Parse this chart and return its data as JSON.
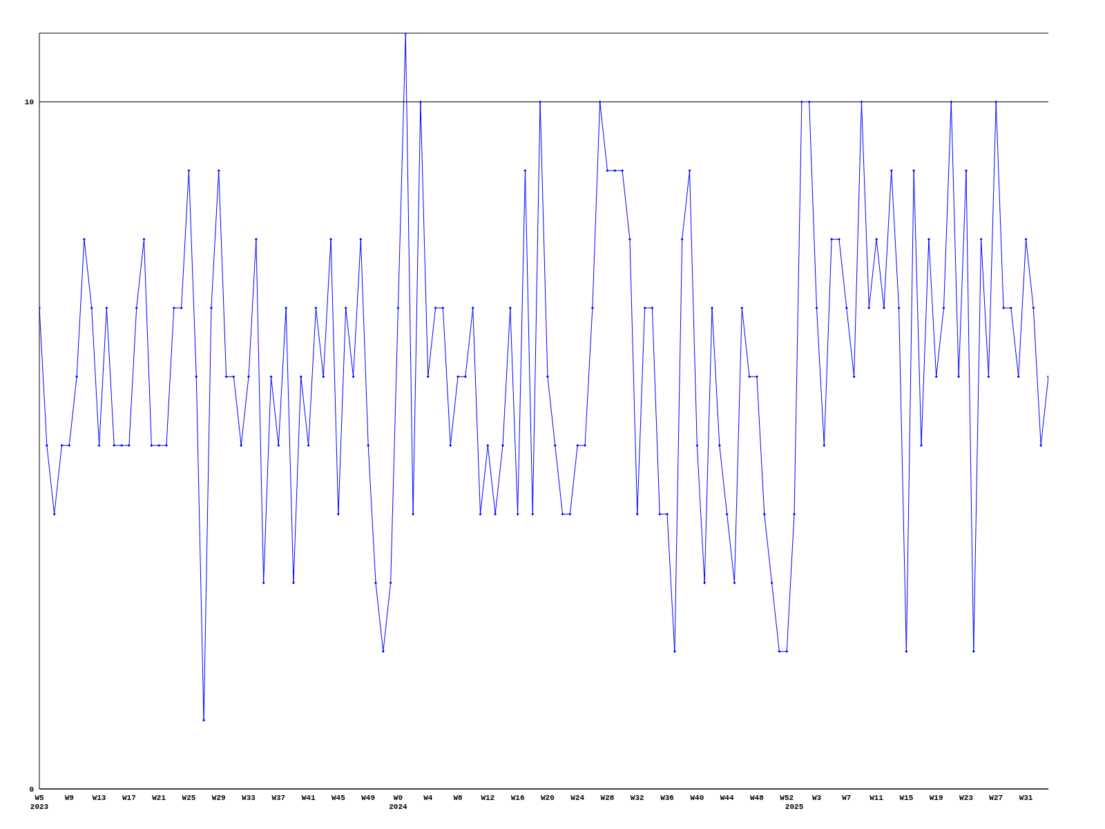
{
  "chart_data": {
    "type": "line",
    "categories": [
      "W5\n2023",
      null,
      null,
      null,
      "W9",
      null,
      null,
      null,
      "W13",
      null,
      null,
      null,
      "W17",
      null,
      null,
      null,
      "W21",
      null,
      null,
      null,
      "W25",
      null,
      null,
      null,
      "W29",
      null,
      null,
      null,
      "W33",
      null,
      null,
      null,
      "W37",
      null,
      null,
      null,
      "W41",
      null,
      null,
      null,
      "W45",
      null,
      null,
      null,
      "W49",
      null,
      null,
      null,
      "W0\n2024",
      null,
      null,
      null,
      "W4",
      null,
      null,
      null,
      "W8",
      null,
      null,
      null,
      "W12",
      null,
      null,
      null,
      "W16",
      null,
      null,
      null,
      "W20",
      null,
      null,
      null,
      "W24",
      null,
      null,
      null,
      "W28",
      null,
      null,
      null,
      "W32",
      null,
      null,
      null,
      "W36",
      null,
      null,
      null,
      "W40",
      null,
      null,
      null,
      "W44",
      null,
      null,
      null,
      "W48",
      null,
      null,
      null,
      "W52",
      "\n2025",
      null,
      null,
      "W3",
      null,
      null,
      null,
      "W7",
      null,
      null,
      null,
      "W11",
      null,
      null,
      null,
      "W15",
      null,
      null,
      null,
      "W19",
      null,
      null,
      null,
      "W23",
      null,
      null,
      null,
      "W27",
      null,
      null,
      null,
      "W31",
      null,
      null,
      null
    ],
    "series": [
      {
        "color": "#0000ff",
        "values": [
          7,
          5,
          4,
          5,
          5,
          6,
          8,
          7,
          5,
          7,
          5,
          5,
          5,
          7,
          8,
          5,
          5,
          5,
          7,
          7,
          9,
          6,
          1,
          7,
          9,
          6,
          6,
          5,
          6,
          8,
          3,
          6,
          5,
          7,
          3,
          6,
          5,
          7,
          6,
          8,
          4,
          7,
          6,
          8,
          5,
          3,
          2,
          3,
          7,
          11,
          4,
          10,
          6,
          7,
          7,
          5,
          6,
          6,
          7,
          4,
          5,
          4,
          5,
          7,
          4,
          9,
          4,
          10,
          6,
          5,
          4,
          4,
          5,
          5,
          7,
          10,
          9,
          9,
          9,
          8,
          4,
          7,
          7,
          4,
          4,
          2,
          8,
          9,
          5,
          3,
          7,
          5,
          4,
          3,
          7,
          6,
          6,
          4,
          3,
          2,
          2,
          4,
          10,
          10,
          7,
          5,
          8,
          8,
          7,
          6,
          10,
          7,
          8,
          7,
          9,
          7,
          2,
          9,
          5,
          8,
          6,
          7,
          10,
          6,
          9,
          2,
          8,
          6,
          10,
          7,
          7,
          6,
          8,
          7,
          5,
          6
        ]
      }
    ],
    "ylim": [
      0,
      11
    ],
    "yticks": [
      0,
      10
    ],
    "grid": "y",
    "marker": "diamond",
    "line_style": "solid"
  }
}
